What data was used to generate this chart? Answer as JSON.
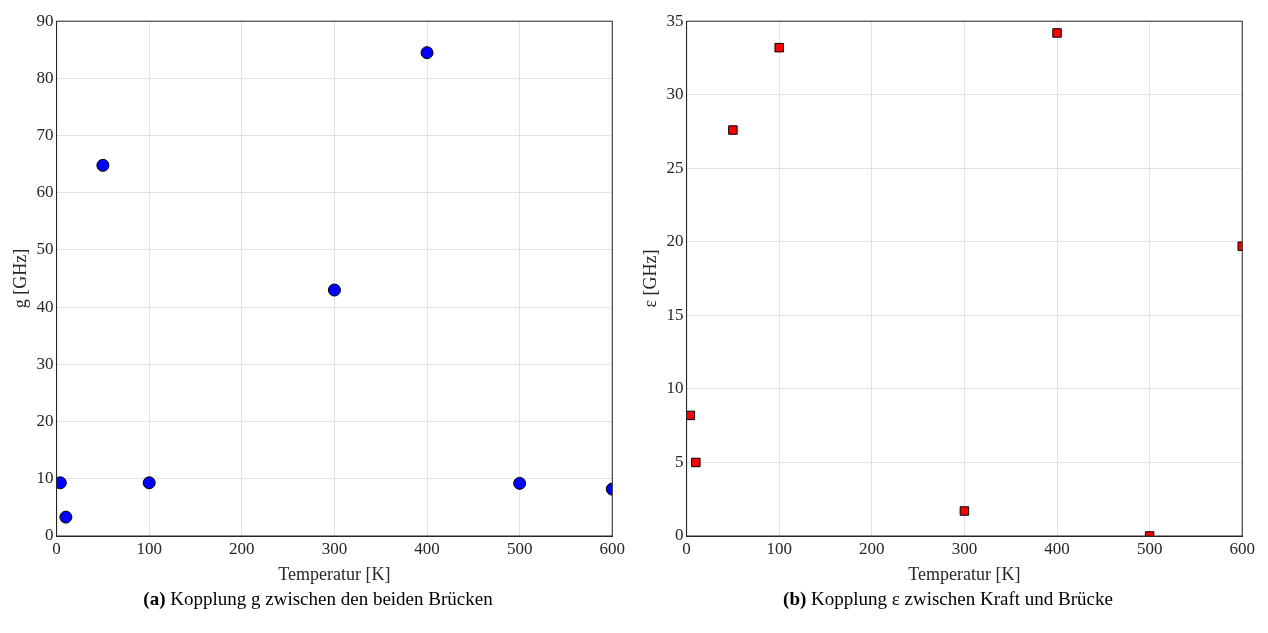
{
  "chart_data": [
    {
      "type": "scatter",
      "xlabel": "Temperatur [K]",
      "ylabel": "g [GHz]",
      "x": [
        4,
        10,
        50,
        100,
        300,
        400,
        500,
        600
      ],
      "series": [
        {
          "color": "#0000ff",
          "values": [
            9.3,
            3.3,
            64.8,
            9.3,
            43.0,
            84.5,
            9.2,
            8.2
          ]
        }
      ],
      "xlim": [
        0,
        600
      ],
      "xticks": [
        0,
        100,
        200,
        300,
        400,
        500,
        600
      ],
      "ylim": [
        0,
        90
      ],
      "yticks": [
        0,
        10,
        20,
        30,
        40,
        50,
        60,
        70,
        80,
        90
      ],
      "grid": true,
      "marker": "circle",
      "annotations": [
        "(a) Kopplung g zwischen den beiden Brücken"
      ]
    },
    {
      "type": "scatter",
      "xlabel": "Temperatur [K]",
      "ylabel": "ε [GHz]",
      "x": [
        4,
        10,
        50,
        100,
        300,
        400,
        500,
        600
      ],
      "series": [
        {
          "color": "#ff0000",
          "values": [
            8.2,
            5.0,
            27.6,
            33.2,
            1.7,
            34.2,
            0,
            19.7
          ]
        }
      ],
      "xlim": [
        0,
        600
      ],
      "xticks": [
        0,
        100,
        200,
        300,
        400,
        500,
        600
      ],
      "ylim": [
        0,
        35
      ],
      "yticks": [
        0,
        5,
        10,
        15,
        20,
        25,
        30,
        35
      ],
      "grid": true,
      "marker": "square",
      "annotations": [
        "(b) Kopplung ε zwischen Kraft und Brücke"
      ]
    }
  ]
}
